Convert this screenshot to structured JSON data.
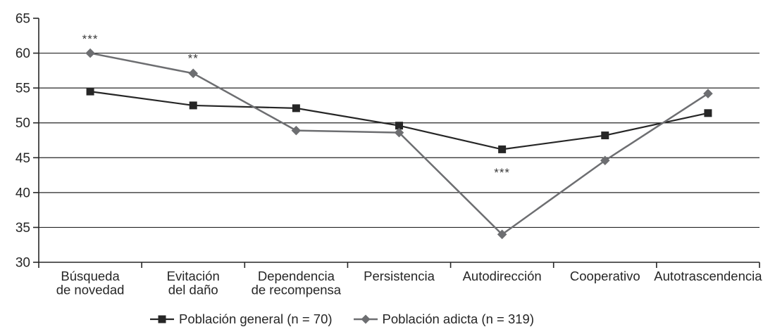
{
  "chart_data": {
    "type": "line",
    "title": "",
    "xlabel": "",
    "ylabel": "",
    "categories": [
      {
        "lines": [
          "Búsqueda",
          "de novedad"
        ]
      },
      {
        "lines": [
          "Evitación",
          "del daño"
        ]
      },
      {
        "lines": [
          "Dependencia",
          "de recompensa"
        ]
      },
      {
        "lines": [
          "Persistencia"
        ]
      },
      {
        "lines": [
          "Autodirección"
        ]
      },
      {
        "lines": [
          "Cooperativo"
        ]
      },
      {
        "lines": [
          "Autotrascendencia"
        ]
      }
    ],
    "series": [
      {
        "name": "Población general (n = 70)",
        "marker": "square",
        "color": "#262626",
        "line_width": 2.2,
        "values": [
          54.5,
          52.5,
          52.1,
          49.6,
          46.2,
          48.2,
          51.4
        ]
      },
      {
        "name": "Población adicta (n = 319)",
        "marker": "diamond",
        "color": "#6d6e71",
        "line_width": 2.5,
        "values": [
          60.0,
          57.1,
          48.9,
          48.6,
          34.0,
          44.6,
          54.2
        ]
      }
    ],
    "annotations": [
      {
        "text": "***",
        "category_index": 0,
        "value": 62.1
      },
      {
        "text": "**",
        "category_index": 1,
        "value": 59.3
      },
      {
        "text": "***",
        "category_index": 4,
        "value": 42.9
      }
    ],
    "y_axis": {
      "min": 30,
      "max": 65,
      "tick_step": 5,
      "ticks": [
        65,
        60,
        55,
        50,
        45,
        40,
        35,
        30
      ],
      "gridline_ticks": [
        60,
        55,
        50,
        45,
        40,
        35
      ]
    },
    "grid": "horizontal",
    "legend_position": "bottom",
    "colors": {
      "axis": "#262626",
      "gridline": "#262626",
      "text": "#262626",
      "annotation": "#3a3a3a"
    }
  }
}
